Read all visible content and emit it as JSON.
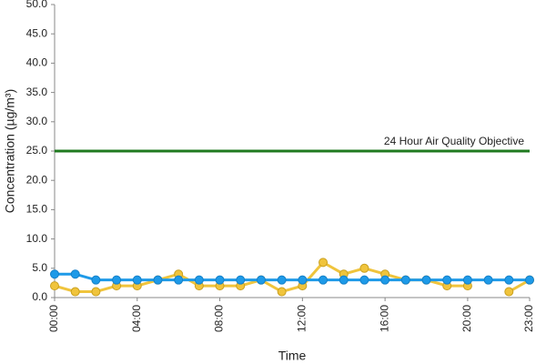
{
  "chart_data": {
    "type": "line",
    "x_label": "Time",
    "y_label": "Concentration (µg/m³)",
    "categories": [
      "00:00",
      null,
      null,
      null,
      "04:00",
      null,
      null,
      null,
      "08:00",
      null,
      null,
      null,
      "12:00",
      null,
      null,
      null,
      "16:00",
      null,
      null,
      null,
      "20:00",
      null,
      null,
      "23:00"
    ],
    "series": [
      {
        "color": "#f0c43c",
        "values": [
          2,
          1,
          1,
          2,
          2,
          3,
          4,
          2,
          2,
          2,
          3,
          1,
          2,
          6,
          4,
          5,
          4,
          3,
          3,
          2,
          2,
          null,
          1,
          3
        ]
      },
      {
        "color": "#1e9ae8",
        "values": [
          4,
          4,
          3,
          3,
          3,
          3,
          3,
          3,
          3,
          3,
          3,
          3,
          3,
          3,
          3,
          3,
          3,
          3,
          3,
          3,
          3,
          3,
          3,
          3
        ]
      }
    ],
    "objective": {
      "value": 25,
      "label": "24 Hour Air Quality Objective",
      "color": "#1f7a1f"
    },
    "ylim": [
      0,
      50
    ],
    "yticks": [
      {
        "value": 0,
        "label": "0.0"
      },
      {
        "value": 5,
        "label": "5.0"
      },
      {
        "value": 10,
        "label": "10.0"
      },
      {
        "value": 15,
        "label": "15.0"
      },
      {
        "value": 20,
        "label": "20.0"
      },
      {
        "value": 25,
        "label": "25.0"
      },
      {
        "value": 30,
        "label": "30.0"
      },
      {
        "value": 35,
        "label": "35.0"
      },
      {
        "value": 40,
        "label": "40.0"
      },
      {
        "value": 45,
        "label": "45.0"
      },
      {
        "value": 50,
        "label": "50.0"
      }
    ]
  }
}
